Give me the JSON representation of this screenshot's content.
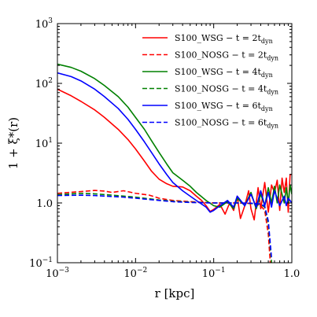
{
  "chart_data": {
    "type": "line",
    "xlabel": "r [kpc]",
    "ylabel": "1 + ξ*(r)",
    "xscale": "log",
    "yscale": "log",
    "xlim": [
      0.001,
      1.0
    ],
    "ylim": [
      0.1,
      1000
    ],
    "x_ticks": [
      {
        "value": 0.001,
        "base": "10",
        "exp": "−3"
      },
      {
        "value": 0.01,
        "base": "10",
        "exp": "−2"
      },
      {
        "value": 0.1,
        "base": "10",
        "exp": "−1"
      },
      {
        "value": 1.0,
        "label": "1.0"
      }
    ],
    "y_ticks": [
      {
        "value": 0.1,
        "base": "10",
        "exp": "−1"
      },
      {
        "value": 1.0,
        "label": "1.0"
      },
      {
        "value": 10,
        "base": "10",
        "exp": "1"
      },
      {
        "value": 100,
        "base": "10",
        "exp": "2"
      },
      {
        "value": 1000,
        "base": "10",
        "exp": "3"
      }
    ],
    "grid": false,
    "legend_position": "top-right",
    "series": [
      {
        "name": "S100_WSG − t = 2t_dyn",
        "color": "#ff0000",
        "dash": "solid",
        "points": [
          [
            0.001,
            80
          ],
          [
            0.0015,
            62
          ],
          [
            0.002,
            50
          ],
          [
            0.003,
            36
          ],
          [
            0.004,
            27
          ],
          [
            0.006,
            17
          ],
          [
            0.008,
            11.5
          ],
          [
            0.01,
            8
          ],
          [
            0.013,
            5
          ],
          [
            0.016,
            3.4
          ],
          [
            0.02,
            2.5
          ],
          [
            0.025,
            2.1
          ],
          [
            0.03,
            1.9
          ],
          [
            0.04,
            1.85
          ],
          [
            0.05,
            1.6
          ],
          [
            0.06,
            1.3
          ],
          [
            0.07,
            1.1
          ],
          [
            0.08,
            0.9
          ],
          [
            0.09,
            0.72
          ],
          [
            0.1,
            0.78
          ],
          [
            0.12,
            0.95
          ],
          [
            0.14,
            0.65
          ],
          [
            0.16,
            1.0
          ],
          [
            0.18,
            0.75
          ],
          [
            0.2,
            1.3
          ],
          [
            0.22,
            0.55
          ],
          [
            0.25,
            0.9
          ],
          [
            0.28,
            1.6
          ],
          [
            0.3,
            0.8
          ],
          [
            0.33,
            0.52
          ],
          [
            0.37,
            1.8
          ],
          [
            0.4,
            0.8
          ],
          [
            0.45,
            2.2
          ],
          [
            0.5,
            0.7
          ],
          [
            0.55,
            2.0
          ],
          [
            0.6,
            1.5
          ],
          [
            0.65,
            2.4
          ],
          [
            0.7,
            0.75
          ],
          [
            0.75,
            2.6
          ],
          [
            0.8,
            1.5
          ],
          [
            0.85,
            2.6
          ],
          [
            0.9,
            0.7
          ],
          [
            0.95,
            3.0
          ],
          [
            1.0,
            3.0
          ]
        ]
      },
      {
        "name": "S100_NOSG − t = 2t_dyn",
        "color": "#ff0000",
        "dash": "dashed",
        "points": [
          [
            0.001,
            1.45
          ],
          [
            0.002,
            1.55
          ],
          [
            0.003,
            1.62
          ],
          [
            0.004,
            1.58
          ],
          [
            0.005,
            1.5
          ],
          [
            0.007,
            1.6
          ],
          [
            0.01,
            1.45
          ],
          [
            0.015,
            1.35
          ],
          [
            0.02,
            1.2
          ],
          [
            0.03,
            1.1
          ],
          [
            0.05,
            1.05
          ],
          [
            0.1,
            1.0
          ],
          [
            0.2,
            1.0
          ],
          [
            0.3,
            0.98
          ],
          [
            0.4,
            0.9
          ],
          [
            0.45,
            0.75
          ],
          [
            0.5,
            0.3
          ],
          [
            0.53,
            0.1
          ]
        ]
      },
      {
        "name": "S100_WSG − t = 4t_dyn",
        "color": "#008000",
        "dash": "solid",
        "points": [
          [
            0.001,
            210
          ],
          [
            0.0015,
            185
          ],
          [
            0.002,
            160
          ],
          [
            0.003,
            120
          ],
          [
            0.004,
            92
          ],
          [
            0.006,
            60
          ],
          [
            0.008,
            40
          ],
          [
            0.01,
            27
          ],
          [
            0.013,
            17
          ],
          [
            0.016,
            11
          ],
          [
            0.02,
            7
          ],
          [
            0.025,
            4.5
          ],
          [
            0.03,
            3.2
          ],
          [
            0.04,
            2.4
          ],
          [
            0.05,
            1.9
          ],
          [
            0.06,
            1.5
          ],
          [
            0.08,
            1.1
          ],
          [
            0.1,
            0.9
          ],
          [
            0.12,
            0.85
          ],
          [
            0.15,
            1.05
          ],
          [
            0.18,
            0.8
          ],
          [
            0.2,
            1.2
          ],
          [
            0.25,
            0.9
          ],
          [
            0.3,
            1.5
          ],
          [
            0.35,
            0.8
          ],
          [
            0.4,
            1.4
          ],
          [
            0.45,
            0.9
          ],
          [
            0.5,
            1.8
          ],
          [
            0.55,
            1.0
          ],
          [
            0.6,
            1.9
          ],
          [
            0.65,
            1.0
          ],
          [
            0.7,
            2.0
          ],
          [
            0.8,
            1.0
          ],
          [
            0.85,
            1.8
          ],
          [
            0.9,
            1.0
          ],
          [
            0.95,
            2.0
          ],
          [
            1.0,
            1.4
          ]
        ]
      },
      {
        "name": "S100_NOSG − t = 4t_dyn",
        "color": "#008000",
        "dash": "dashed",
        "points": [
          [
            0.001,
            1.38
          ],
          [
            0.002,
            1.45
          ],
          [
            0.003,
            1.42
          ],
          [
            0.005,
            1.35
          ],
          [
            0.007,
            1.3
          ],
          [
            0.01,
            1.25
          ],
          [
            0.02,
            1.12
          ],
          [
            0.03,
            1.07
          ],
          [
            0.05,
            1.03
          ],
          [
            0.1,
            1.0
          ],
          [
            0.2,
            1.0
          ],
          [
            0.3,
            0.98
          ],
          [
            0.4,
            0.95
          ],
          [
            0.45,
            0.85
          ],
          [
            0.5,
            0.45
          ],
          [
            0.55,
            0.1
          ]
        ]
      },
      {
        "name": "S100_WSG − t = 6t_dyn",
        "color": "#0000ff",
        "dash": "solid",
        "points": [
          [
            0.001,
            150
          ],
          [
            0.0015,
            130
          ],
          [
            0.002,
            110
          ],
          [
            0.003,
            80
          ],
          [
            0.004,
            60
          ],
          [
            0.006,
            38
          ],
          [
            0.008,
            25
          ],
          [
            0.01,
            17
          ],
          [
            0.013,
            10.5
          ],
          [
            0.016,
            7
          ],
          [
            0.02,
            4.5
          ],
          [
            0.025,
            3.0
          ],
          [
            0.03,
            2.2
          ],
          [
            0.04,
            1.6
          ],
          [
            0.05,
            1.3
          ],
          [
            0.06,
            1.1
          ],
          [
            0.08,
            0.85
          ],
          [
            0.09,
            0.7
          ],
          [
            0.1,
            0.75
          ],
          [
            0.12,
            0.9
          ],
          [
            0.15,
            1.1
          ],
          [
            0.18,
            0.85
          ],
          [
            0.2,
            1.3
          ],
          [
            0.25,
            0.9
          ],
          [
            0.3,
            1.4
          ],
          [
            0.35,
            0.85
          ],
          [
            0.4,
            1.6
          ],
          [
            0.45,
            0.9
          ],
          [
            0.5,
            1.5
          ],
          [
            0.55,
            0.85
          ],
          [
            0.6,
            1.6
          ],
          [
            0.7,
            0.9
          ],
          [
            0.8,
            1.3
          ],
          [
            0.85,
            0.9
          ],
          [
            0.9,
            1.2
          ],
          [
            1.0,
            1.0
          ]
        ]
      },
      {
        "name": "S100_NOSG − t = 6t_dyn",
        "color": "#0000ff",
        "dash": "dashed",
        "points": [
          [
            0.001,
            1.33
          ],
          [
            0.002,
            1.35
          ],
          [
            0.003,
            1.33
          ],
          [
            0.005,
            1.28
          ],
          [
            0.007,
            1.25
          ],
          [
            0.01,
            1.2
          ],
          [
            0.02,
            1.1
          ],
          [
            0.03,
            1.05
          ],
          [
            0.05,
            1.02
          ],
          [
            0.1,
            1.0
          ],
          [
            0.2,
            1.0
          ],
          [
            0.3,
            0.99
          ],
          [
            0.4,
            0.96
          ],
          [
            0.45,
            0.88
          ],
          [
            0.5,
            0.5
          ],
          [
            0.55,
            0.12
          ]
        ]
      }
    ],
    "legend": [
      {
        "label": "S100_WSG − t = 2t",
        "sub": "dyn",
        "color": "#ff0000",
        "dash": "solid"
      },
      {
        "label": "S100_NOSG − t = 2t",
        "sub": "dyn",
        "color": "#ff0000",
        "dash": "dashed"
      },
      {
        "label": "S100_WSG − t = 4t",
        "sub": "dyn",
        "color": "#008000",
        "dash": "solid"
      },
      {
        "label": "S100_NOSG − t = 4t",
        "sub": "dyn",
        "color": "#008000",
        "dash": "dashed"
      },
      {
        "label": "S100_WSG − t = 6t",
        "sub": "dyn",
        "color": "#0000ff",
        "dash": "solid"
      },
      {
        "label": "S100_NOSG − t = 6t",
        "sub": "dyn",
        "color": "#0000ff",
        "dash": "dashed"
      }
    ]
  }
}
